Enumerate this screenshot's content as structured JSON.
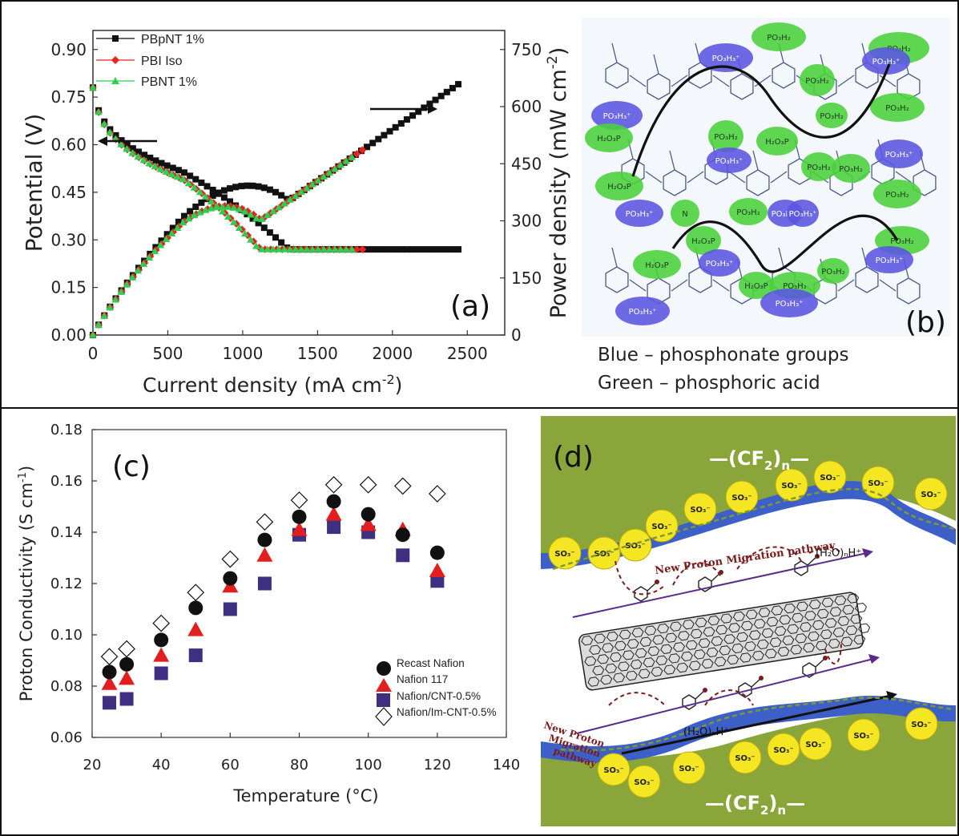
{
  "colors": {
    "black": "#111111",
    "red": "#e8231c",
    "green": "#2ccf52",
    "navy": "#3f2f80",
    "marker_red": "#e31e1e",
    "blue_blob": "#5a55e0",
    "green_blob": "#49d13a",
    "olive": "#8aa63a",
    "polymer_blue": "#3d5fc8",
    "so3_yellow": "#f4e623"
  },
  "panel_a": {
    "label": "(a)",
    "chart_data": {
      "type": "scatter",
      "xlabel": "Current density (mA cm",
      "xlabel_sup": "-2",
      "xlabel_end": ")",
      "ylabel_left": "Potential (V)",
      "ylabel_right": "Power density (mW cm",
      "ylabel_right_sup": "-2",
      "ylabel_right_end": ")",
      "xlim": [
        0,
        2750
      ],
      "ylim_left": [
        0,
        0.96
      ],
      "ylim_right": [
        0,
        800
      ],
      "xticks": [
        "0",
        "500",
        "1000",
        "1500",
        "2000",
        "2500"
      ],
      "xtick_values": [
        0,
        500,
        1000,
        1500,
        2000,
        2500
      ],
      "yticks_left": [
        "0.00",
        "0.15",
        "0.30",
        "0.45",
        "0.60",
        "0.75",
        "0.90"
      ],
      "ytick_left_values": [
        0,
        0.15,
        0.3,
        0.45,
        0.6,
        0.75,
        0.9
      ],
      "yticks_right": [
        "0",
        "150",
        "300",
        "450",
        "600",
        "750"
      ],
      "ytick_right_values": [
        0,
        150,
        300,
        450,
        600,
        750
      ],
      "legend_position": "top-left",
      "series": [
        {
          "name": "PBpNT 1%",
          "marker": "square",
          "color": "#111111",
          "polarization": {
            "i_max": 2440,
            "v0": 0.78,
            "a": 0.065,
            "b": 7e-05,
            "c": 0.000157
          },
          "power_kind": "product"
        },
        {
          "name": "PBI Iso",
          "marker": "diamond",
          "color": "#e8231c",
          "polarization": {
            "i_max": 1800,
            "v0": 0.78,
            "a": 0.07,
            "b": 8e-05,
            "c": 0.000235
          },
          "power_kind": "product"
        },
        {
          "name": "PBNT 1%",
          "marker": "triangle",
          "color": "#2ccf52",
          "polarization": {
            "i_max": 1730,
            "v0": 0.78,
            "a": 0.07,
            "b": 8e-05,
            "c": 0.000245
          },
          "power_kind": "product"
        }
      ]
    }
  },
  "panel_b": {
    "label": "(b)",
    "caption_blue": "Blue – phosphonate groups",
    "caption_green": "Green – phosphoric acid",
    "labels": {
      "po3h2": "PO₃H₂",
      "h2op": "H₂O₃P",
      "po3h3": "PO₃H₃⁺",
      "n": "N"
    }
  },
  "panel_c": {
    "label": "(c)",
    "chart_data": {
      "type": "scatter",
      "xlabel": "Temperature (°C)",
      "ylabel": "Proton Conductivity (S cm",
      "ylabel_sup": "-1",
      "ylabel_end": ")",
      "xlim": [
        20,
        140
      ],
      "ylim": [
        0.06,
        0.18
      ],
      "xticks": [
        "20",
        "40",
        "60",
        "80",
        "100",
        "120",
        "140"
      ],
      "xtick_values": [
        20,
        40,
        60,
        80,
        100,
        120,
        140
      ],
      "yticks": [
        "0.06",
        "0.08",
        "0.10",
        "0.12",
        "0.14",
        "0.16",
        "0.18"
      ],
      "ytick_values": [
        0.06,
        0.08,
        0.1,
        0.12,
        0.14,
        0.16,
        0.18
      ],
      "x": [
        25,
        30,
        40,
        50,
        60,
        70,
        80,
        90,
        100,
        110,
        120
      ],
      "legend_position": "bottom-right",
      "series": [
        {
          "name": "Recast Nafion",
          "marker": "circle",
          "color": "#111111",
          "values": [
            0.0855,
            0.0885,
            0.098,
            0.1105,
            0.122,
            0.137,
            0.146,
            0.152,
            0.147,
            0.139,
            0.132
          ]
        },
        {
          "name": "Nafion 117",
          "marker": "triangle",
          "color": "#e31e1e",
          "values": [
            0.081,
            0.083,
            0.092,
            0.102,
            0.119,
            0.131,
            0.141,
            0.147,
            0.143,
            0.141,
            0.125
          ]
        },
        {
          "name": "Nafion/CNT-0.5%",
          "marker": "square",
          "color": "#3f2f80",
          "values": [
            0.0735,
            0.075,
            0.085,
            0.092,
            0.11,
            0.12,
            0.139,
            0.142,
            0.14,
            0.131,
            0.121
          ]
        },
        {
          "name": "Nafion/Im-CNT-0.5%",
          "marker": "diamond",
          "color": "#111111",
          "values": [
            0.0915,
            0.0945,
            0.1045,
            0.1165,
            0.1295,
            0.144,
            0.1525,
            0.1585,
            0.1585,
            0.158,
            0.155
          ]
        }
      ]
    }
  },
  "panel_d": {
    "label": "(d)",
    "cf2_top": "—(CF",
    "cf2_bottom": "—(CF",
    "cf2_sub": "2",
    "cf2_n": "n",
    "cf2_close": ")",
    "water_top": "(H₂O)ₙH⁺",
    "water_bottom": "(H₂O)ₙH⁺",
    "pathway_top": "New Proton Migration pathway",
    "pathway_left": [
      "New Proton",
      "Migration",
      "pathway"
    ],
    "so3": "SO₃⁻"
  }
}
